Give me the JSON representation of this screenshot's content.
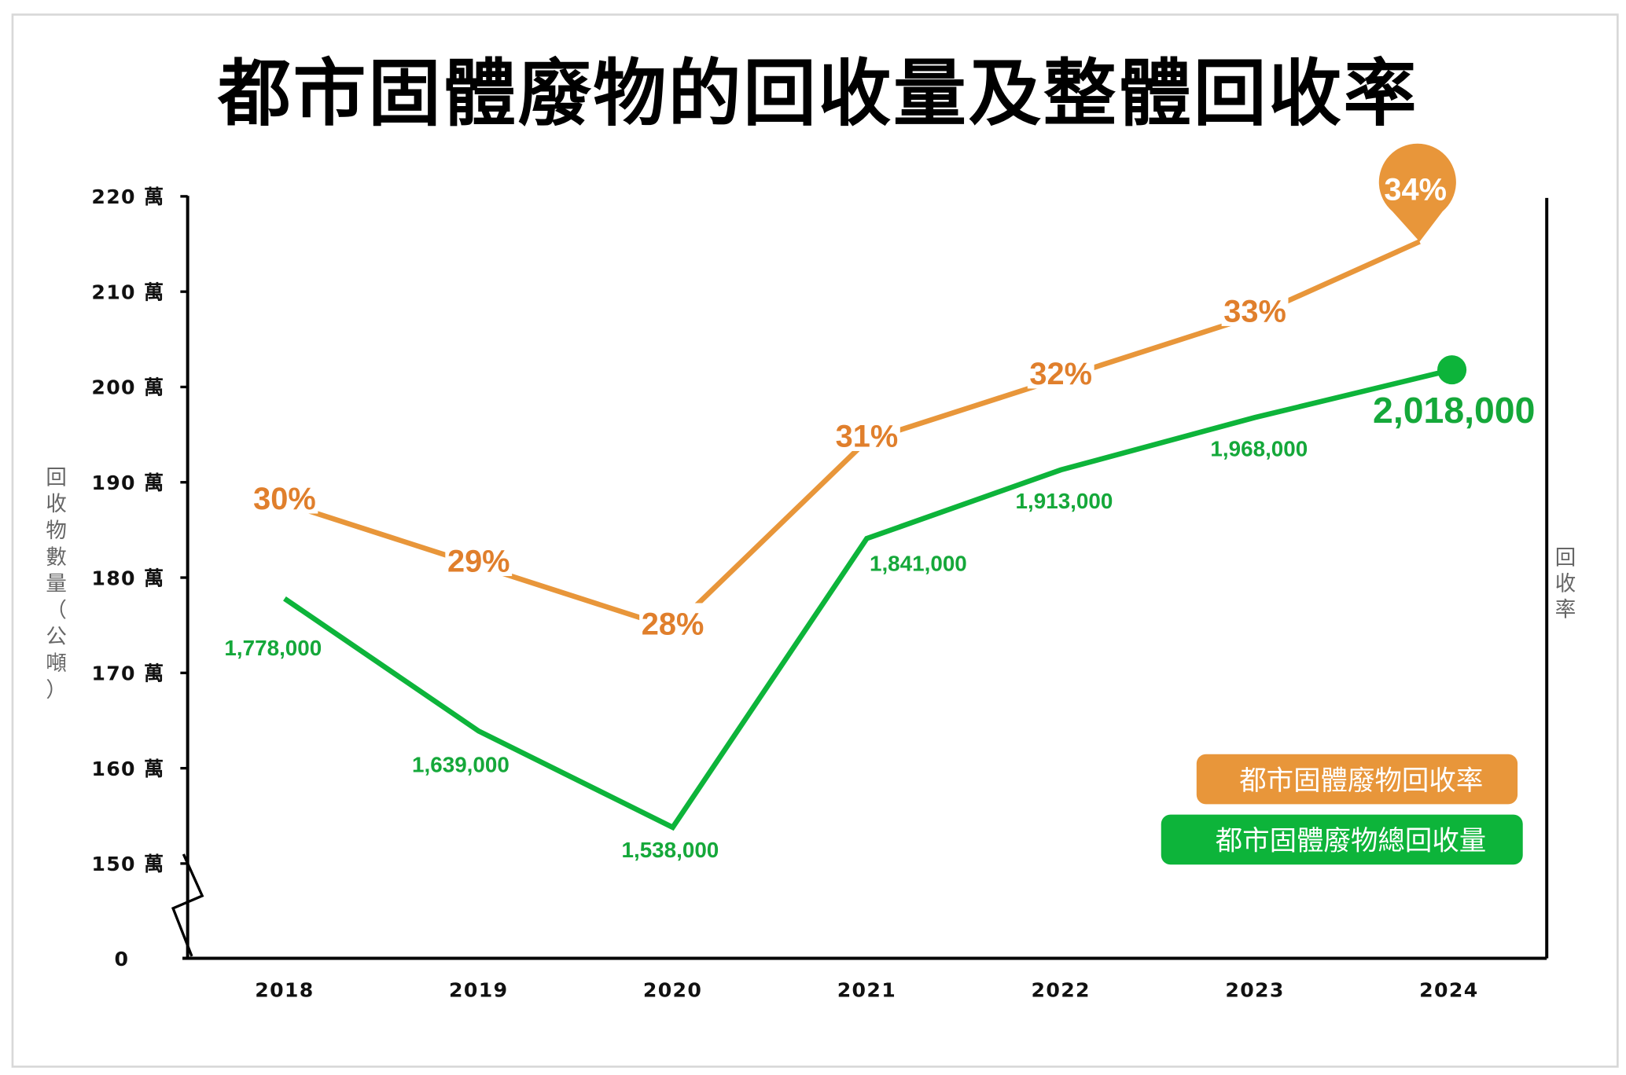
{
  "chart_data": {
    "type": "line",
    "title": "都市固體廢物的回收量及整體回收率",
    "ylabel": "回收物數量（公噸）",
    "y2label": "回收率",
    "categories": [
      "2018",
      "2019",
      "2020",
      "2021",
      "2022",
      "2023",
      "2024"
    ],
    "yticks": [
      {
        "value": 0,
        "label": "0"
      },
      {
        "value": 1500000,
        "label": "150 萬"
      },
      {
        "value": 1600000,
        "label": "160 萬"
      },
      {
        "value": 1700000,
        "label": "170 萬"
      },
      {
        "value": 1800000,
        "label": "180 萬"
      },
      {
        "value": 1900000,
        "label": "190 萬"
      },
      {
        "value": 2000000,
        "label": "200 萬"
      },
      {
        "value": 2100000,
        "label": "210 萬"
      },
      {
        "value": 2200000,
        "label": "220 萬"
      }
    ],
    "ylim": [
      1500000,
      2200000
    ],
    "axis_break": true,
    "grid": false,
    "legend_placement": "bottom-right",
    "series": [
      {
        "name": "都市固體廢物回收率",
        "axis": "right",
        "color": "#E8963A",
        "values": [
          30,
          29,
          28,
          31,
          32,
          33,
          34
        ],
        "labels": [
          "30%",
          "29%",
          "28%",
          "31%",
          "32%",
          "33%",
          "34%"
        ]
      },
      {
        "name": "都市固體廢物總回收量",
        "axis": "left",
        "color": "#0DB43A",
        "values": [
          1778000,
          1639000,
          1538000,
          1841000,
          1913000,
          1968000,
          2018000
        ],
        "labels": [
          "1,778,000",
          "1,639,000",
          "1,538,000",
          "1,841,000",
          "1,913,000",
          "1,968,000",
          "2,018,000"
        ]
      }
    ]
  }
}
